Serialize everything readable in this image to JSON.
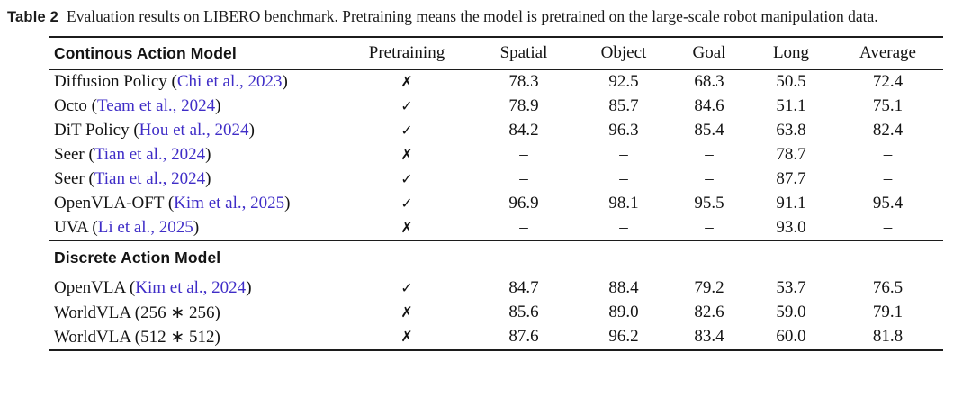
{
  "caption": {
    "label": "Table 2",
    "text": "Evaluation results on LIBERO benchmark. Pretraining means the model is pretrained on the large-scale robot manipulation data."
  },
  "header": {
    "model_column": "Continous Action Model",
    "columns": [
      "Pretraining",
      "Spatial",
      "Object",
      "Goal",
      "Long",
      "Average"
    ]
  },
  "marks": {
    "check": "✓",
    "cross": "✗"
  },
  "citation_color": "#3f2dc7",
  "sections": [
    {
      "title": "",
      "rows": [
        {
          "name_pre": "Diffusion Policy (",
          "cite": "Chi et al., 2023",
          "name_post": ")",
          "mark": "✗",
          "values": [
            "78.3",
            "92.5",
            "68.3",
            "50.5",
            "72.4"
          ]
        },
        {
          "name_pre": "Octo (",
          "cite": "Team et al., 2024",
          "name_post": ")",
          "mark": "✓",
          "values": [
            "78.9",
            "85.7",
            "84.6",
            "51.1",
            "75.1"
          ]
        },
        {
          "name_pre": "DiT Policy (",
          "cite": "Hou et al., 2024",
          "name_post": ")",
          "mark": "✓",
          "values": [
            "84.2",
            "96.3",
            "85.4",
            "63.8",
            "82.4"
          ]
        },
        {
          "name_pre": "Seer (",
          "cite": "Tian et al., 2024",
          "name_post": ")",
          "mark": "✗",
          "values": [
            "–",
            "–",
            "–",
            "78.7",
            "–"
          ]
        },
        {
          "name_pre": "Seer (",
          "cite": "Tian et al., 2024",
          "name_post": ")",
          "mark": "✓",
          "values": [
            "–",
            "–",
            "–",
            "87.7",
            "–"
          ]
        },
        {
          "name_pre": "OpenVLA-OFT (",
          "cite": "Kim et al., 2025",
          "name_post": ")",
          "mark": "✓",
          "values": [
            "96.9",
            "98.1",
            "95.5",
            "91.1",
            "95.4"
          ]
        },
        {
          "name_pre": "UVA (",
          "cite": "Li et al., 2025",
          "name_post": ")",
          "mark": "✗",
          "values": [
            "–",
            "–",
            "–",
            "93.0",
            "–"
          ]
        }
      ]
    },
    {
      "title": "Discrete Action Model",
      "rows": [
        {
          "name_pre": "OpenVLA (",
          "cite": "Kim et al., 2024",
          "name_post": ")",
          "mark": "✓",
          "values": [
            "84.7",
            "88.4",
            "79.2",
            "53.7",
            "76.5"
          ]
        },
        {
          "name_pre": "WorldVLA (256 ∗ 256)",
          "cite": "",
          "name_post": "",
          "mark": "✗",
          "values": [
            "85.6",
            "89.0",
            "82.6",
            "59.0",
            "79.1"
          ]
        },
        {
          "name_pre": "WorldVLA (512 ∗ 512)",
          "cite": "",
          "name_post": "",
          "mark": "✗",
          "values": [
            "87.6",
            "96.2",
            "83.4",
            "60.0",
            "81.8"
          ]
        }
      ]
    }
  ]
}
